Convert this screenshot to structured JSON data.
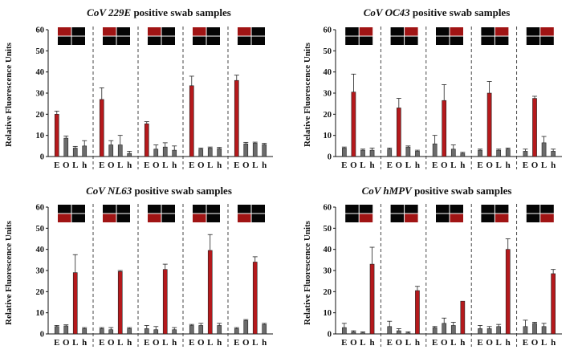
{
  "colors": {
    "red": "#b5191c",
    "grey": "#6b6b6b",
    "inset_bg": "#050505",
    "inset_red": "#a01414"
  },
  "chart_data": [
    {
      "type": "bar",
      "title_italic": "CoV 229E",
      "title_rest": " positive swab samples",
      "ylabel": "Relative Fluorescence Units",
      "ylim": [
        0,
        60
      ],
      "yticks": [
        0,
        10,
        20,
        30,
        40,
        50,
        60
      ],
      "categories": [
        "E",
        "O",
        "L",
        "h"
      ],
      "groups": [
        {
          "values": [
            20.0,
            8.7,
            4.0,
            5.0
          ],
          "errors": [
            1.5,
            1.0,
            0.8,
            2.5
          ],
          "positive_index": 0,
          "inset_red": [
            0
          ]
        },
        {
          "values": [
            27.0,
            5.5,
            5.5,
            1.5
          ],
          "errors": [
            5.5,
            2.0,
            4.5,
            1.0
          ],
          "positive_index": 0,
          "inset_red": [
            0
          ]
        },
        {
          "values": [
            15.5,
            3.5,
            4.5,
            3.0
          ],
          "errors": [
            1.0,
            2.0,
            2.0,
            2.0
          ],
          "positive_index": 0,
          "inset_red": [
            0
          ]
        },
        {
          "values": [
            33.5,
            3.5,
            4.0,
            3.8
          ],
          "errors": [
            4.5,
            0.5,
            0.5,
            0.5
          ],
          "positive_index": 0,
          "inset_red": [
            0
          ]
        },
        {
          "values": [
            36.0,
            6.0,
            6.3,
            5.7
          ],
          "errors": [
            2.5,
            0.7,
            0.5,
            0.5
          ],
          "positive_index": 0,
          "inset_red": [
            0
          ]
        }
      ]
    },
    {
      "type": "bar",
      "title_italic": "CoV OC43",
      "title_rest": " positive swab samples",
      "ylabel": "Relative Fluorescence Units",
      "ylim": [
        0,
        60
      ],
      "yticks": [
        0,
        10,
        20,
        30,
        40,
        50,
        60
      ],
      "categories": [
        "E",
        "O",
        "L",
        "h"
      ],
      "groups": [
        {
          "values": [
            4.0,
            30.5,
            3.0,
            3.0
          ],
          "errors": [
            0.5,
            8.5,
            0.5,
            1.0
          ],
          "positive_index": 1,
          "inset_red": [
            1
          ]
        },
        {
          "values": [
            3.5,
            23.0,
            4.5,
            2.5
          ],
          "errors": [
            0.5,
            4.5,
            0.5,
            0.5
          ],
          "positive_index": 1,
          "inset_red": [
            1
          ]
        },
        {
          "values": [
            6.0,
            26.5,
            3.5,
            1.5
          ],
          "errors": [
            4.0,
            7.5,
            2.0,
            0.5
          ],
          "positive_index": 1,
          "inset_red": [
            1
          ]
        },
        {
          "values": [
            3.0,
            30.0,
            3.0,
            3.5
          ],
          "errors": [
            0.5,
            5.5,
            0.5,
            0.5
          ],
          "positive_index": 1,
          "inset_red": [
            1
          ]
        },
        {
          "values": [
            2.5,
            27.5,
            6.5,
            2.5
          ],
          "errors": [
            1.0,
            1.0,
            3.0,
            1.0
          ],
          "positive_index": 1,
          "inset_red": [
            1
          ]
        }
      ]
    },
    {
      "type": "bar",
      "title_italic": "CoV NL63",
      "title_rest": " positive swab samples",
      "ylabel": "Relative Fluorescence Units",
      "ylim": [
        0,
        60
      ],
      "yticks": [
        0,
        10,
        20,
        30,
        40,
        50,
        60
      ],
      "categories": [
        "E",
        "O",
        "L",
        "h"
      ],
      "groups": [
        {
          "values": [
            3.5,
            3.8,
            29.0,
            2.5
          ],
          "errors": [
            0.5,
            0.5,
            8.5,
            0.5
          ],
          "positive_index": 2,
          "inset_red": [
            2
          ]
        },
        {
          "values": [
            2.5,
            2.0,
            29.5,
            2.5
          ],
          "errors": [
            0.5,
            1.0,
            0.5,
            0.5
          ],
          "positive_index": 2,
          "inset_red": [
            2
          ]
        },
        {
          "values": [
            2.5,
            2.0,
            30.5,
            2.0
          ],
          "errors": [
            1.5,
            1.5,
            2.5,
            1.0
          ],
          "positive_index": 2,
          "inset_red": [
            2
          ]
        },
        {
          "values": [
            4.0,
            4.0,
            39.5,
            4.0
          ],
          "errors": [
            0.5,
            1.0,
            7.5,
            1.0
          ],
          "positive_index": 2,
          "inset_red": [
            2
          ]
        },
        {
          "values": [
            2.5,
            6.3,
            34.0,
            4.5
          ],
          "errors": [
            0.5,
            0.5,
            2.5,
            0.5
          ],
          "positive_index": 2,
          "inset_red": [
            2
          ]
        }
      ]
    },
    {
      "type": "bar",
      "title_italic": "CoV hMPV",
      "title_rest": " positive swab samples",
      "ylabel": "Relative Fluorescence Units",
      "ylim": [
        0,
        60
      ],
      "yticks": [
        0,
        10,
        20,
        30,
        40,
        50,
        60
      ],
      "categories": [
        "E",
        "O",
        "L",
        "h"
      ],
      "groups": [
        {
          "values": [
            3.0,
            1.0,
            0.5,
            33.0
          ],
          "errors": [
            2.0,
            0.5,
            0.5,
            8.0
          ],
          "positive_index": 3,
          "inset_red": [
            3
          ]
        },
        {
          "values": [
            3.5,
            1.5,
            0.5,
            20.5
          ],
          "errors": [
            2.5,
            1.0,
            0.5,
            2.0
          ],
          "positive_index": 3,
          "inset_red": [
            3
          ]
        },
        {
          "values": [
            3.0,
            5.0,
            4.0,
            15.5
          ],
          "errors": [
            0.5,
            2.5,
            1.5,
            0.0
          ],
          "positive_index": 3,
          "inset_red": [
            3
          ]
        },
        {
          "values": [
            2.5,
            2.5,
            3.5,
            40.0
          ],
          "errors": [
            1.5,
            1.0,
            1.0,
            5.0
          ],
          "positive_index": 3,
          "inset_red": [
            3
          ]
        },
        {
          "values": [
            3.5,
            5.0,
            3.5,
            28.5
          ],
          "errors": [
            3.0,
            0.5,
            1.5,
            2.0
          ],
          "positive_index": 3,
          "inset_red": [
            3
          ]
        }
      ]
    }
  ]
}
